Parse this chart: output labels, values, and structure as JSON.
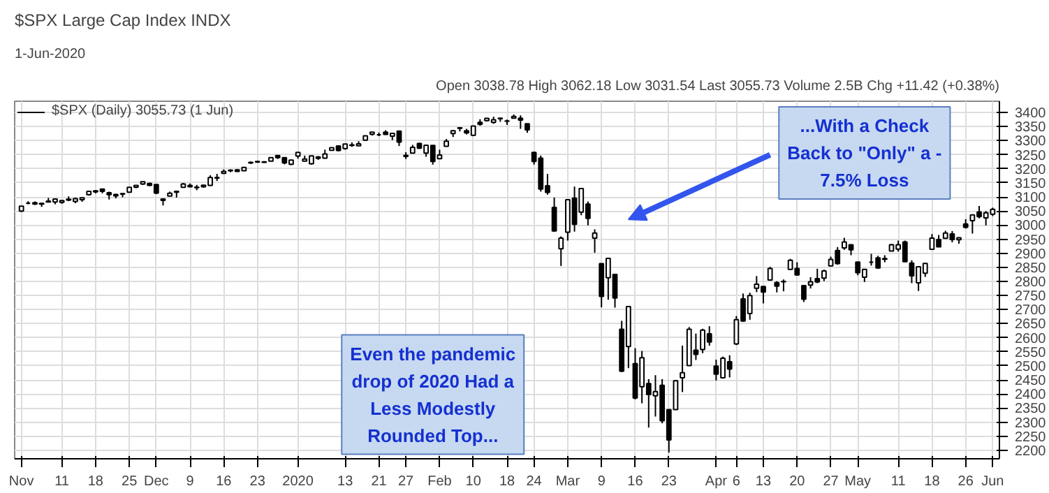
{
  "chart_data": {
    "type": "candlestick",
    "title": "$SPX Large Cap Index INDX",
    "subtitle": "1-Jun-2020",
    "annotations": [
      "Open 3038.78 High 3062.18 Low 3031.54 Last 3055.73 Volume 2.5B Chg +11.42 (+0.38%)",
      "Even the pandemic drop of 2020 Had a Less Modestly Rounded Top...",
      "...With a Check Back to \"Only\" a - 7.5% Loss"
    ],
    "categories": [
      "Nov",
      null,
      null,
      null,
      null,
      null,
      "11",
      null,
      null,
      null,
      null,
      "18",
      null,
      null,
      null,
      null,
      "25",
      null,
      null,
      null,
      "Dec",
      null,
      null,
      null,
      null,
      "9",
      null,
      null,
      null,
      null,
      "16",
      null,
      null,
      null,
      null,
      "23",
      null,
      null,
      null,
      null,
      null,
      "2020",
      null,
      null,
      null,
      null,
      null,
      null,
      "13",
      null,
      null,
      null,
      null,
      "21",
      null,
      null,
      null,
      "27",
      null,
      null,
      null,
      null,
      "Feb",
      null,
      null,
      null,
      null,
      "10",
      null,
      null,
      null,
      null,
      "18",
      null,
      null,
      null,
      "24",
      null,
      null,
      null,
      null,
      "Mar",
      null,
      null,
      null,
      null,
      "9",
      null,
      null,
      null,
      null,
      "16",
      null,
      null,
      null,
      null,
      "23",
      null,
      null,
      null,
      null,
      null,
      null,
      "Apr",
      null,
      null,
      "6",
      null,
      null,
      null,
      "13",
      null,
      null,
      null,
      null,
      "20",
      null,
      null,
      null,
      null,
      "27",
      null,
      null,
      null,
      "May",
      null,
      null,
      null,
      null,
      null,
      "11",
      null,
      null,
      null,
      null,
      "18",
      null,
      null,
      null,
      null,
      "26",
      null,
      null,
      null,
      "Jun"
    ],
    "series": [
      {
        "name": "$SPX (Daily) 3055.73 (1 Jun)",
        "color": "#000000",
        "ohlc": [
          [
            3050,
            3067,
            3047,
            3067
          ],
          [
            3078,
            3085,
            3074,
            3078
          ],
          [
            3080,
            3084,
            3072,
            3075
          ],
          [
            3075,
            3079,
            3065,
            3077
          ],
          [
            3082,
            3097,
            3081,
            3085
          ],
          [
            3082,
            3094,
            3074,
            3093
          ],
          [
            3081,
            3088,
            3076,
            3087
          ],
          [
            3089,
            3102,
            3085,
            3092
          ],
          [
            3084,
            3098,
            3078,
            3094
          ],
          [
            3090,
            3098,
            3083,
            3097
          ],
          [
            3108,
            3121,
            3105,
            3120
          ],
          [
            3118,
            3124,
            3113,
            3122
          ],
          [
            3128,
            3128,
            3113,
            3120
          ],
          [
            3115,
            3119,
            3091,
            3108
          ],
          [
            3109,
            3111,
            3095,
            3104
          ],
          [
            3112,
            3113,
            3099,
            3110
          ],
          [
            3117,
            3134,
            3117,
            3134
          ],
          [
            3135,
            3142,
            3131,
            3141
          ],
          [
            3146,
            3155,
            3143,
            3154
          ],
          [
            3148,
            3151,
            3139,
            3141
          ],
          [
            3144,
            3144,
            3110,
            3114
          ],
          [
            3088,
            3095,
            3070,
            3093
          ],
          [
            3103,
            3119,
            3103,
            3113
          ],
          [
            3120,
            3121,
            3098,
            3117
          ],
          [
            3134,
            3150,
            3134,
            3146
          ],
          [
            3141,
            3148,
            3135,
            3136
          ],
          [
            3135,
            3143,
            3124,
            3133
          ],
          [
            3136,
            3143,
            3133,
            3142
          ],
          [
            3141,
            3177,
            3139,
            3169
          ],
          [
            3167,
            3182,
            3157,
            3169
          ],
          [
            3184,
            3198,
            3184,
            3191
          ],
          [
            3195,
            3198,
            3188,
            3193
          ],
          [
            3196,
            3199,
            3191,
            3191
          ],
          [
            3193,
            3206,
            3192,
            3205
          ],
          [
            3223,
            3226,
            3217,
            3221
          ],
          [
            3226,
            3228,
            3221,
            3224
          ],
          [
            3225,
            3227,
            3222,
            3223
          ],
          [
            3227,
            3240,
            3227,
            3240
          ],
          [
            3247,
            3247,
            3235,
            3240
          ],
          [
            3240,
            3241,
            3216,
            3221
          ],
          [
            3216,
            3232,
            3213,
            3231
          ],
          [
            3245,
            3258,
            3236,
            3258
          ],
          [
            3227,
            3247,
            3227,
            3235
          ],
          [
            3218,
            3247,
            3215,
            3246
          ],
          [
            3242,
            3245,
            3232,
            3237
          ],
          [
            3238,
            3268,
            3236,
            3253
          ],
          [
            3266,
            3275,
            3264,
            3275
          ],
          [
            3281,
            3283,
            3262,
            3265
          ],
          [
            3272,
            3288,
            3268,
            3288
          ],
          [
            3285,
            3294,
            3278,
            3283
          ],
          [
            3282,
            3298,
            3281,
            3289
          ],
          [
            3302,
            3317,
            3302,
            3317
          ],
          [
            3323,
            3330,
            3318,
            3330
          ],
          [
            3321,
            3329,
            3316,
            3321
          ],
          [
            3330,
            3337,
            3321,
            3322
          ],
          [
            3316,
            3326,
            3302,
            3326
          ],
          [
            3334,
            3334,
            3281,
            3295
          ],
          [
            3248,
            3259,
            3235,
            3244
          ],
          [
            3256,
            3285,
            3256,
            3276
          ],
          [
            3290,
            3293,
            3271,
            3273
          ],
          [
            3256,
            3286,
            3243,
            3284
          ],
          [
            3283,
            3283,
            3215,
            3226
          ],
          [
            3236,
            3268,
            3236,
            3249
          ],
          [
            3280,
            3306,
            3280,
            3298
          ],
          [
            3325,
            3338,
            3313,
            3335
          ],
          [
            3344,
            3348,
            3333,
            3346
          ],
          [
            3335,
            3342,
            3322,
            3328
          ],
          [
            3319,
            3352,
            3317,
            3352
          ],
          [
            3365,
            3376,
            3353,
            3358
          ],
          [
            3371,
            3381,
            3369,
            3379
          ],
          [
            3365,
            3385,
            3360,
            3374
          ],
          [
            3378,
            3381,
            3367,
            3380
          ],
          [
            3369,
            3375,
            3356,
            3370
          ],
          [
            3380,
            3393,
            3379,
            3386
          ],
          [
            3380,
            3390,
            3342,
            3373
          ],
          [
            3360,
            3360,
            3328,
            3338
          ],
          [
            3258,
            3260,
            3215,
            3226
          ],
          [
            3238,
            3247,
            3119,
            3128
          ],
          [
            3140,
            3182,
            3108,
            3116
          ],
          [
            3063,
            3098,
            2977,
            2979
          ],
          [
            2916,
            2960,
            2855,
            2954
          ],
          [
            2975,
            3091,
            2945,
            3090
          ],
          [
            3096,
            3137,
            2977,
            3003
          ],
          [
            3046,
            3130,
            3035,
            3130
          ],
          [
            3075,
            3084,
            2999,
            3024
          ],
          [
            2954,
            2985,
            2902,
            2972
          ],
          [
            2863,
            2863,
            2708,
            2747
          ],
          [
            2813,
            2883,
            2735,
            2882
          ],
          [
            2825,
            2825,
            2707,
            2741
          ],
          [
            2630,
            2660,
            2478,
            2481
          ],
          [
            2569,
            2711,
            2492,
            2711
          ],
          [
            2508,
            2563,
            2381,
            2386
          ],
          [
            2426,
            2553,
            2367,
            2529
          ],
          [
            2437,
            2453,
            2281,
            2398
          ],
          [
            2394,
            2467,
            2320,
            2409
          ],
          [
            2431,
            2453,
            2296,
            2305
          ],
          [
            2344,
            2347,
            2192,
            2237
          ],
          [
            2345,
            2450,
            2345,
            2447
          ],
          [
            2458,
            2572,
            2407,
            2476
          ],
          [
            2501,
            2638,
            2501,
            2630
          ],
          [
            2556,
            2615,
            2521,
            2541
          ],
          [
            2558,
            2632,
            2545,
            2627
          ],
          [
            2614,
            2641,
            2572,
            2585
          ],
          [
            2499,
            2522,
            2448,
            2471
          ],
          [
            2458,
            2533,
            2455,
            2527
          ],
          [
            2515,
            2538,
            2459,
            2489
          ],
          [
            2578,
            2677,
            2574,
            2664
          ],
          [
            2738,
            2757,
            2657,
            2659
          ],
          [
            2686,
            2760,
            2664,
            2750
          ],
          [
            2776,
            2819,
            2762,
            2790
          ],
          [
            2782,
            2783,
            2722,
            2762
          ],
          [
            2805,
            2852,
            2805,
            2846
          ],
          [
            2796,
            2801,
            2761,
            2783
          ],
          [
            2799,
            2807,
            2765,
            2800
          ],
          [
            2843,
            2880,
            2843,
            2875
          ],
          [
            2846,
            2868,
            2821,
            2823
          ],
          [
            2785,
            2785,
            2727,
            2737
          ],
          [
            2787,
            2815,
            2775,
            2799
          ],
          [
            2810,
            2845,
            2794,
            2798
          ],
          [
            2812,
            2842,
            2801,
            2837
          ],
          [
            2855,
            2888,
            2853,
            2878
          ],
          [
            2910,
            2922,
            2860,
            2863
          ],
          [
            2919,
            2955,
            2912,
            2940
          ],
          [
            2930,
            2931,
            2893,
            2912
          ],
          [
            2869,
            2869,
            2822,
            2831
          ],
          [
            2815,
            2844,
            2798,
            2843
          ],
          [
            2868,
            2898,
            2856,
            2868
          ],
          [
            2884,
            2891,
            2845,
            2848
          ],
          [
            2879,
            2893,
            2868,
            2881
          ],
          [
            2908,
            2933,
            2908,
            2930
          ],
          [
            2915,
            2945,
            2906,
            2930
          ],
          [
            2940,
            2945,
            2870,
            2870
          ],
          [
            2865,
            2875,
            2794,
            2820
          ],
          [
            2795,
            2852,
            2766,
            2852
          ],
          [
            2829,
            2865,
            2816,
            2864
          ],
          [
            2914,
            2968,
            2914,
            2954
          ],
          [
            2949,
            2965,
            2922,
            2923
          ],
          [
            2953,
            2980,
            2953,
            2972
          ],
          [
            2969,
            2979,
            2939,
            2949
          ],
          [
            2948,
            2957,
            2934,
            2955
          ],
          [
            3004,
            3021,
            2988,
            2992
          ],
          [
            3016,
            3036,
            2970,
            3036
          ],
          [
            3047,
            3068,
            3024,
            3030
          ],
          [
            3026,
            3050,
            2999,
            3044
          ],
          [
            3039,
            3062,
            3032,
            3056
          ]
        ]
      }
    ],
    "ylim": [
      2170,
      3440
    ],
    "yticks": [
      2200,
      2250,
      2300,
      2350,
      2400,
      2450,
      2500,
      2550,
      2600,
      2650,
      2700,
      2750,
      2800,
      2850,
      2900,
      2950,
      3000,
      3050,
      3100,
      3150,
      3200,
      3250,
      3300,
      3350,
      3400
    ],
    "grid": true,
    "legend": "top left"
  }
}
